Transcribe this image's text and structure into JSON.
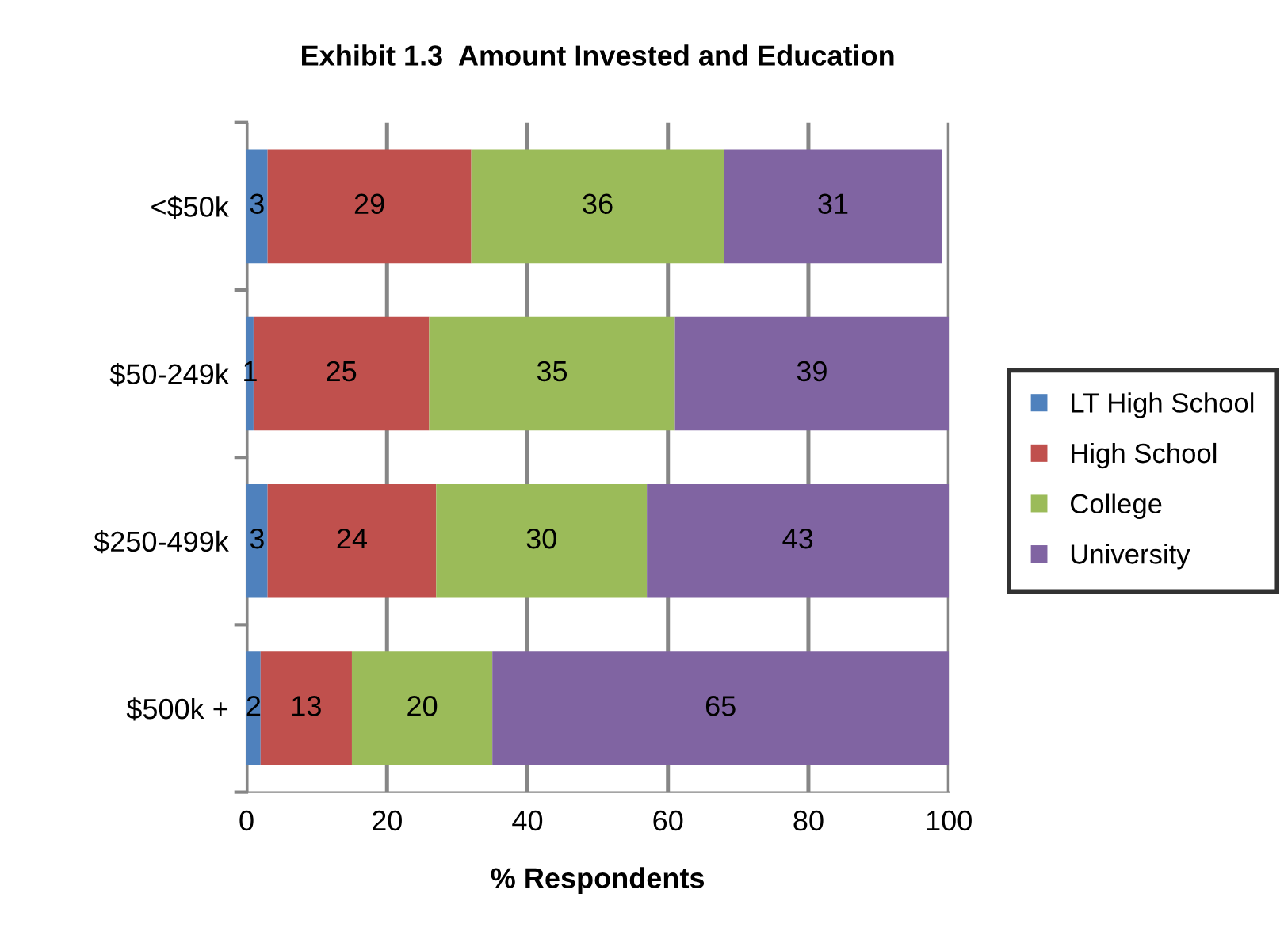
{
  "chart_data": {
    "type": "bar",
    "orientation": "horizontal",
    "stacked": true,
    "title": "Exhibit 1.3  Amount Invested and Education",
    "xlabel": "% Respondents",
    "categories": [
      "<$50k",
      "$50-249k",
      "$250-499k",
      "$500k +"
    ],
    "series": [
      {
        "name": "LT High School",
        "color": "#4f81bd",
        "values": [
          3,
          1,
          3,
          2
        ]
      },
      {
        "name": "High School",
        "color": "#c0504d",
        "values": [
          29,
          25,
          24,
          13
        ]
      },
      {
        "name": "College",
        "color": "#9bbb59",
        "values": [
          36,
          35,
          30,
          20
        ]
      },
      {
        "name": "University",
        "color": "#8064a2",
        "values": [
          31,
          39,
          43,
          65
        ]
      }
    ],
    "xlim": [
      0,
      100
    ],
    "xticks": [
      0,
      20,
      40,
      60,
      80,
      100
    ],
    "grid": "x",
    "legend": "right",
    "data_labels": true
  }
}
